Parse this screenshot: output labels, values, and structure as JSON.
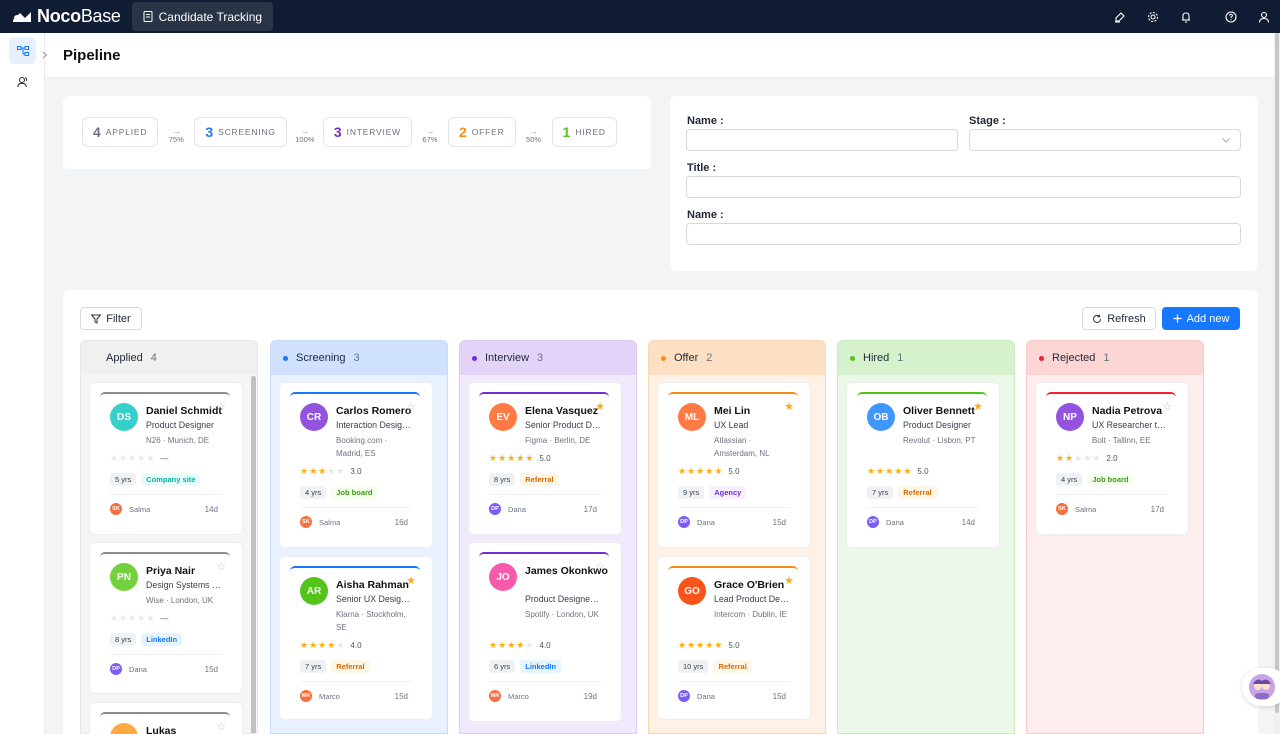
{
  "app": {
    "logo_bold": "Noco",
    "logo_light": "Base",
    "active_tab": "Candidate Tracking"
  },
  "topbar_icons": [
    "highlighter-icon",
    "settings-icon",
    "bell-icon",
    "help-icon",
    "user-icon"
  ],
  "sidebar": {
    "items": [
      {
        "icon": "workflow-icon",
        "active": true
      },
      {
        "icon": "users-icon",
        "active": false
      }
    ]
  },
  "page": {
    "title": "Pipeline"
  },
  "funnel": {
    "stages": [
      {
        "count": "4",
        "label": "APPLIED",
        "color": "#6b7280"
      },
      {
        "count": "3",
        "label": "SCREENING",
        "color": "#1677ff"
      },
      {
        "count": "3",
        "label": "INTERVIEW",
        "color": "#722ed1"
      },
      {
        "count": "2",
        "label": "OFFER",
        "color": "#fa8c16"
      },
      {
        "count": "1",
        "label": "HIRED",
        "color": "#52c41a"
      }
    ],
    "conversions": [
      "75%",
      "100%",
      "67%",
      "50%"
    ]
  },
  "filter_form": {
    "name_label": "Name :",
    "stage_label": "Stage :",
    "title_label": "Title :",
    "name2_label": "Name :"
  },
  "toolbar": {
    "filter": "Filter",
    "refresh": "Refresh",
    "add_new": "Add new"
  },
  "columns": [
    {
      "name": "Applied",
      "count": "4",
      "dot": "",
      "bg": "#f5f5f5",
      "border": "#e5e7eb",
      "head": "#f0f0f0"
    },
    {
      "name": "Screening",
      "count": "3",
      "dot": "#1677ff",
      "bg": "#e8f1ff",
      "border": "#c7dbfb",
      "head": "#cfe1fd"
    },
    {
      "name": "Interview",
      "count": "3",
      "dot": "#722ed1",
      "bg": "#f2eafc",
      "border": "#ddcbf6",
      "head": "#e4d3f8"
    },
    {
      "name": "Offer",
      "count": "2",
      "dot": "#fa8c16",
      "bg": "#fff1e5",
      "border": "#fbd6b4",
      "head": "#fde0c4"
    },
    {
      "name": "Hired",
      "count": "1",
      "dot": "#52c41a",
      "bg": "#ecf8e9",
      "border": "#c9ecbd",
      "head": "#d6f2cd"
    },
    {
      "name": "Rejected",
      "count": "1",
      "dot": "#f5222d",
      "bg": "#fdeded",
      "border": "#f7caca",
      "head": "#fcd5d5"
    }
  ],
  "candidates": [
    [
      {
        "initials": "DS",
        "name": "Daniel Schmidt",
        "title": "Product Designer",
        "loc": "N26 · Munich, DE",
        "rating": 0,
        "rating_text": "—",
        "favorite": false,
        "yrs": "5 yrs",
        "source": "Company site",
        "source_color": "#13a8a8",
        "source_bg": "#e6fffb",
        "owner_initials": "SK",
        "owner": "Salma",
        "owner_color": "#f5703d",
        "days": "14d",
        "avatar_color": "#36cfc9",
        "line_color": "#8c8c8c"
      },
      {
        "initials": "PN",
        "name": "Priya Nair",
        "title": "Design Systems …",
        "loc": "Wise · London, UK",
        "rating": 0,
        "rating_text": "—",
        "favorite": false,
        "yrs": "8 yrs",
        "source": "LinkedIn",
        "source_color": "#1677ff",
        "source_bg": "#e6f4ff",
        "owner_initials": "DP",
        "owner": "Dana",
        "owner_color": "#7c5cf5",
        "days": "15d",
        "avatar_color": "#73d13d",
        "line_color": "#8c8c8c"
      },
      {
        "initials": "",
        "name": "Lukas",
        "title": "",
        "loc": "",
        "rating": 0,
        "rating_text": "",
        "favorite": false,
        "yrs": "",
        "source": "",
        "owner_initials": "",
        "owner": "",
        "days": "",
        "avatar_color": "#ffa940",
        "line_color": "#8c8c8c"
      }
    ],
    [
      {
        "initials": "CR",
        "name": "Carlos Romero",
        "title": "Interaction Desig…",
        "loc": "Booking.com · Madrid, ES",
        "rating": 3,
        "rating_text": "3.0",
        "favorite": false,
        "yrs": "4 yrs",
        "source": "Job board",
        "source_color": "#389e0d",
        "source_bg": "#f6ffed",
        "owner_initials": "SK",
        "owner": "Salma",
        "owner_color": "#f5703d",
        "days": "16d",
        "avatar_color": "#9254de",
        "line_color": "#1677ff"
      },
      {
        "initials": "AR",
        "name": "Aisha Rahman",
        "title": "Senior UX Desig…",
        "loc": "Klarna · Stockholm, SE",
        "rating": 4,
        "rating_text": "4.0",
        "favorite": true,
        "yrs": "7 yrs",
        "source": "Referral",
        "source_color": "#d46b08",
        "source_bg": "#fff7e6",
        "owner_initials": "MR",
        "owner": "Marco",
        "owner_color": "#f5703d",
        "days": "15d",
        "avatar_color": "#52c41a",
        "line_color": "#1677ff"
      }
    ],
    [
      {
        "initials": "EV",
        "name": "Elena Vasquez",
        "title": "Senior Product D…",
        "loc": "Figma · Berlin, DE",
        "rating": 5,
        "rating_text": "5.0",
        "favorite": true,
        "yrs": "8 yrs",
        "source": "Referral",
        "source_color": "#d46b08",
        "source_bg": "#fff7e6",
        "owner_initials": "DP",
        "owner": "Dana",
        "owner_color": "#7c5cf5",
        "days": "17d",
        "avatar_color": "#ff7a45",
        "line_color": "#722ed1"
      },
      {
        "initials": "JO",
        "name": "James Okonkwo",
        "title": "Product Designe…",
        "loc": "Spotify · London, UK",
        "rating": 4,
        "rating_text": "4.0",
        "favorite": false,
        "yrs": "6 yrs",
        "source": "LinkedIn",
        "source_color": "#1677ff",
        "source_bg": "#e6f4ff",
        "owner_initials": "MR",
        "owner": "Marco",
        "owner_color": "#f5703d",
        "days": "19d",
        "avatar_color": "#f759ab",
        "line_color": "#722ed1"
      }
    ],
    [
      {
        "initials": "ML",
        "name": "Mei Lin",
        "title": "UX Lead",
        "loc": "Atlassian · Amsterdam, NL",
        "rating": 5,
        "rating_text": "5.0",
        "favorite": true,
        "yrs": "9 yrs",
        "source": "Agency",
        "source_color": "#722ed1",
        "source_bg": "#f9f0ff",
        "owner_initials": "DP",
        "owner": "Dana",
        "owner_color": "#7c5cf5",
        "days": "15d",
        "avatar_color": "#ff7a45",
        "line_color": "#fa8c16"
      },
      {
        "initials": "GO",
        "name": "Grace O'Brien",
        "title": "Lead Product De…",
        "loc": "Intercom · Dublin, IE",
        "rating": 5,
        "rating_text": "5.0",
        "favorite": true,
        "yrs": "10 yrs",
        "source": "Referral",
        "source_color": "#d46b08",
        "source_bg": "#fff7e6",
        "owner_initials": "DP",
        "owner": "Dana",
        "owner_color": "#7c5cf5",
        "days": "15d",
        "avatar_color": "#fa541c",
        "line_color": "#fa8c16"
      }
    ],
    [
      {
        "initials": "OB",
        "name": "Oliver Bennett",
        "title": "Product Designer",
        "loc": "Revolut · Lisbon, PT",
        "rating": 5,
        "rating_text": "5.0",
        "favorite": true,
        "yrs": "7 yrs",
        "source": "Referral",
        "source_color": "#d46b08",
        "source_bg": "#fff7e6",
        "owner_initials": "DP",
        "owner": "Dana",
        "owner_color": "#7c5cf5",
        "days": "14d",
        "avatar_color": "#4096ff",
        "line_color": "#52c41a"
      }
    ],
    [
      {
        "initials": "NP",
        "name": "Nadia Petrova",
        "title": "UX Researcher t…",
        "loc": "Bolt · Tallinn, EE",
        "rating": 2,
        "rating_text": "2.0",
        "favorite": false,
        "yrs": "4 yrs",
        "source": "Job board",
        "source_color": "#389e0d",
        "source_bg": "#f6ffed",
        "owner_initials": "SK",
        "owner": "Salma",
        "owner_color": "#f5703d",
        "days": "17d",
        "avatar_color": "#9254de",
        "line_color": "#f5222d"
      }
    ]
  ]
}
